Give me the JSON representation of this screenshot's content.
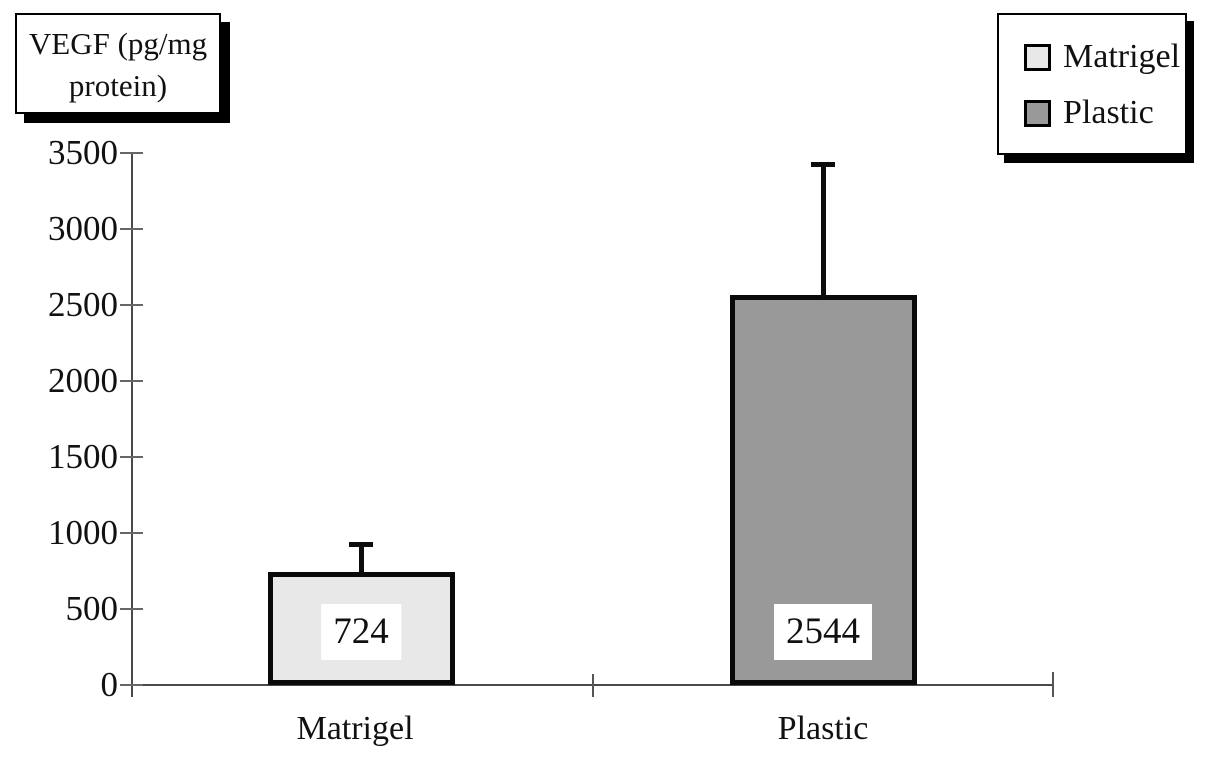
{
  "title_box": {
    "line1": "VEGF (pg/mg",
    "line2": "protein)"
  },
  "legend": {
    "items": [
      {
        "label": "Matrigel",
        "color": "#e8e8e8"
      },
      {
        "label": "Plastic",
        "color": "#999999"
      }
    ]
  },
  "chart_data": {
    "type": "bar",
    "title": "VEGF (pg/mg protein)",
    "ylabel": "VEGF (pg/mg protein)",
    "xlabel": "",
    "categories": [
      "Matrigel",
      "Plastic"
    ],
    "values": [
      724,
      2544
    ],
    "data_labels": [
      "724",
      "2544"
    ],
    "error_upper": [
      220,
      900
    ],
    "bar_colors": [
      "#e8e8e8",
      "#999999"
    ],
    "bar_border_color": "#000000",
    "ylim": [
      0,
      3500
    ],
    "ytick_step": 500,
    "yticks": [
      "3500",
      "3000",
      "2500",
      "2000",
      "1500",
      "1000",
      "500",
      "0"
    ],
    "grid": false,
    "legend_position": "top-right",
    "legend_entries": [
      "Matrigel",
      "Plastic"
    ]
  }
}
